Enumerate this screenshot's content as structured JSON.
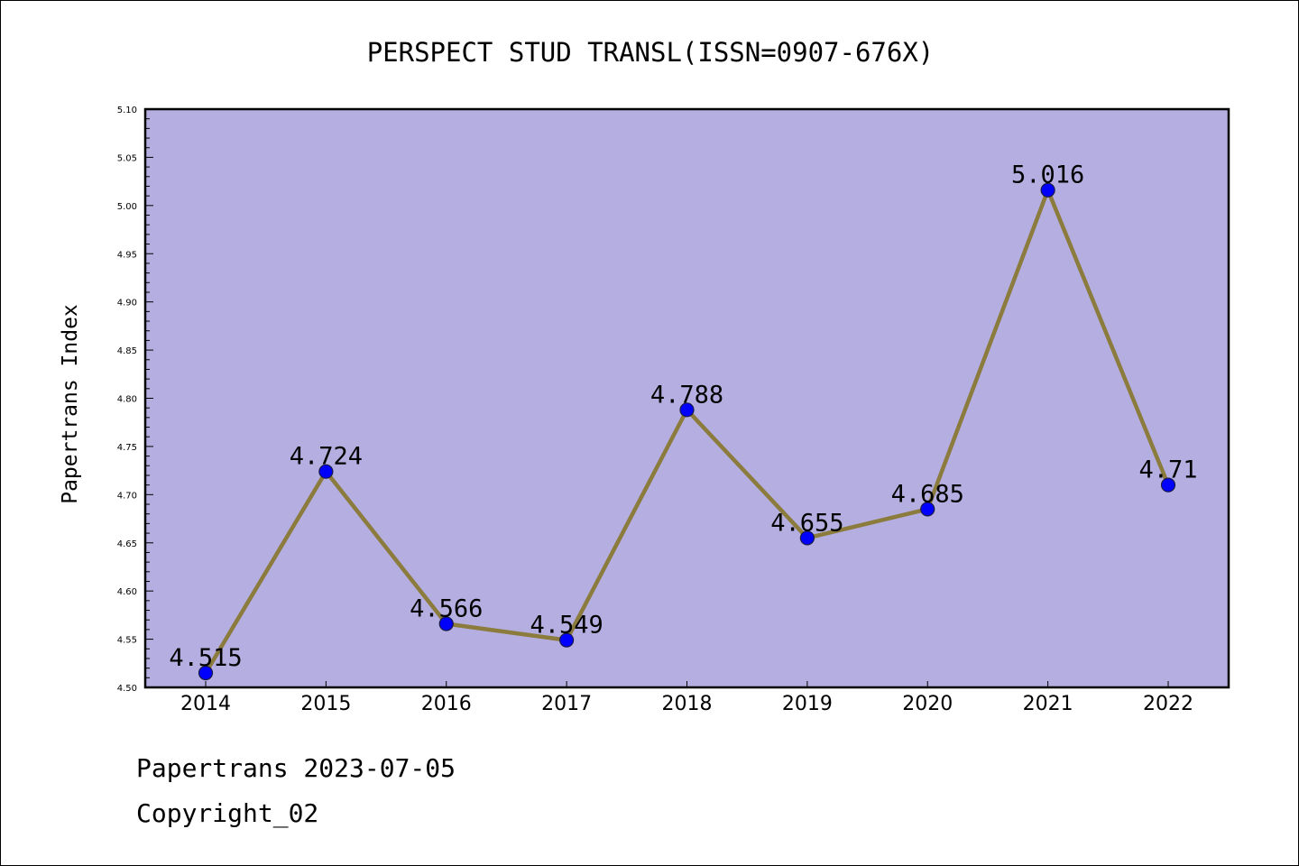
{
  "chart_data": {
    "type": "line",
    "title": "PERSPECT STUD TRANSL(ISSN=0907-676X)",
    "xlabel": "",
    "ylabel": "Papertrans Index",
    "categories": [
      "2014",
      "2015",
      "2016",
      "2017",
      "2018",
      "2019",
      "2020",
      "2021",
      "2022"
    ],
    "values": [
      4.515,
      4.724,
      4.566,
      4.549,
      4.788,
      4.655,
      4.685,
      5.016,
      4.71
    ],
    "data_labels": [
      "4.515",
      "4.724",
      "4.566",
      "4.549",
      "4.788",
      "4.655",
      "4.685",
      "5.016",
      "4.71"
    ],
    "ylim": [
      4.5,
      5.1
    ],
    "y_ticks": [
      "4.50",
      "4.55",
      "4.60",
      "4.65",
      "4.70",
      "4.75",
      "4.80",
      "4.85",
      "4.90",
      "4.95",
      "5.00",
      "5.05",
      "5.10"
    ],
    "grid": false,
    "legend": "none",
    "colors": {
      "plot_background": "#b5aee1",
      "line": "#8b7b3c",
      "marker": "#0000ff"
    }
  },
  "footer": {
    "line1": "Papertrans 2023-07-05",
    "line2": "Copyright_02"
  }
}
